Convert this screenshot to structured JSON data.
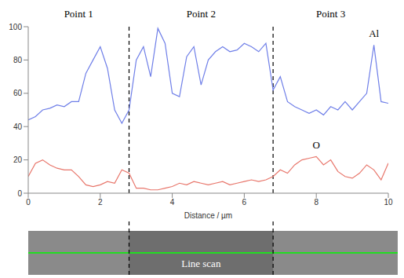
{
  "chart_data": {
    "type": "line",
    "xlabel": "Distance / µm",
    "xlim": [
      0,
      10
    ],
    "xticks": [
      0,
      2,
      4,
      6,
      8,
      10
    ],
    "ylim": [
      0,
      100
    ],
    "yticks": [
      0,
      20,
      40,
      60,
      80,
      100
    ],
    "grid": false,
    "x": [
      0,
      0.2,
      0.4,
      0.6,
      0.8,
      1.0,
      1.2,
      1.4,
      1.6,
      1.8,
      2.0,
      2.2,
      2.4,
      2.6,
      2.8,
      3.0,
      3.2,
      3.4,
      3.6,
      3.8,
      4.0,
      4.2,
      4.4,
      4.6,
      4.8,
      5.0,
      5.2,
      5.4,
      5.6,
      5.8,
      6.0,
      6.2,
      6.4,
      6.6,
      6.8,
      7.0,
      7.2,
      7.4,
      7.6,
      7.8,
      8.0,
      8.2,
      8.4,
      8.6,
      8.8,
      9.0,
      9.2,
      9.4,
      9.6,
      9.8,
      10.0
    ],
    "series": [
      {
        "name": "Al",
        "color": "#6f7fe8",
        "values": [
          44,
          46,
          50,
          51,
          53,
          52,
          55,
          55,
          72,
          80,
          88,
          75,
          50,
          42,
          50,
          80,
          88,
          70,
          99,
          90,
          60,
          58,
          82,
          88,
          65,
          80,
          85,
          88,
          85,
          86,
          90,
          88,
          85,
          90,
          62,
          70,
          55,
          52,
          50,
          48,
          50,
          47,
          52,
          50,
          55,
          50,
          55,
          60,
          89,
          55,
          54
        ]
      },
      {
        "name": "O",
        "color": "#e8766b",
        "values": [
          10,
          18,
          20,
          17,
          15,
          14,
          14,
          10,
          5,
          4,
          5,
          7,
          6,
          14,
          12,
          3,
          3,
          2,
          2,
          3,
          4,
          6,
          5,
          7,
          6,
          5,
          6,
          7,
          5,
          6,
          7,
          8,
          7,
          8,
          10,
          14,
          12,
          17,
          20,
          21,
          22,
          17,
          20,
          13,
          10,
          9,
          12,
          17,
          14,
          8,
          18
        ]
      }
    ],
    "regions": [
      {
        "label": "Point 1",
        "start": 0,
        "end": 2.8
      },
      {
        "label": "Point 2",
        "start": 2.8,
        "end": 6.8
      },
      {
        "label": "Point 3",
        "start": 6.8,
        "end": 10
      }
    ],
    "image_label": "Line scan"
  }
}
